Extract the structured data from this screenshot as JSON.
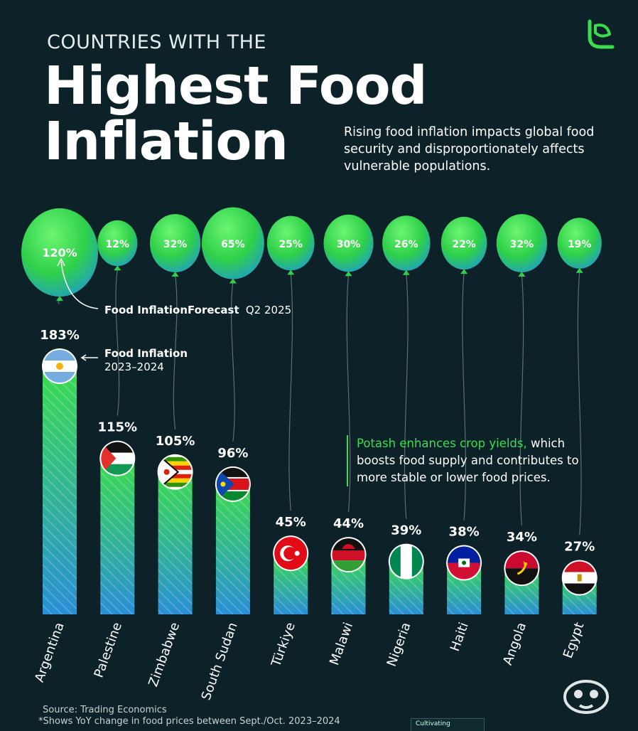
{
  "header": {
    "kicker": "COUNTRIES WITH THE",
    "title_line1": "Highest Food",
    "title_line2": "Inflation",
    "subtitle": "Rising food inflation impacts global food security and disproportionately affects vulnerable populations."
  },
  "annotations": {
    "forecast_label": "Food InflationForecast",
    "forecast_period": "Q2 2025",
    "current_label": "Food Inflation",
    "current_period": "2023–2024"
  },
  "callout": {
    "highlight": "Potash enhances crop yields,",
    "rest": " which boosts food supply and contributes to more stable or lower food prices."
  },
  "footer": {
    "source": "Source: Trading Economics",
    "note": "*Shows YoY change in food prices between Sept./Oct. 2023–2024",
    "stamp": "Cultivating"
  },
  "colors": {
    "background": "#0c2228",
    "bar_top": "#3cdc50",
    "bar_bottom": "#2a8fd6",
    "balloon_light": "#52f05e",
    "balloon_dark": "#1f9ad0",
    "accent": "#3cdc50"
  },
  "chart_data": {
    "type": "bar",
    "categories": [
      "Argentina",
      "Palestine",
      "Zimbabwe",
      "South Sudan",
      "Türkiye",
      "Malawi",
      "Nigeria",
      "Haiti",
      "Angola",
      "Egypt"
    ],
    "series": [
      {
        "name": "Food Inflation 2023–2024",
        "values": [
          183,
          115,
          105,
          96,
          45,
          44,
          39,
          38,
          34,
          27
        ],
        "labels": [
          "183%",
          "115%",
          "105%",
          "96%",
          "45%",
          "44%",
          "39%",
          "38%",
          "34%",
          "27%"
        ]
      },
      {
        "name": "Food InflationForecast Q2 2025",
        "values": [
          120,
          12,
          32,
          65,
          25,
          30,
          26,
          22,
          32,
          19
        ],
        "labels": [
          "120%",
          "12%",
          "32%",
          "65%",
          "25%",
          "30%",
          "26%",
          "22%",
          "32%",
          "19%"
        ]
      }
    ],
    "flags": [
      "flag-argentina-icon",
      "flag-palestine-icon",
      "flag-zimbabwe-icon",
      "flag-south-sudan-icon",
      "flag-turkiye-icon",
      "flag-malawi-icon",
      "flag-nigeria-icon",
      "flag-haiti-icon",
      "flag-angola-icon",
      "flag-egypt-icon"
    ],
    "ylim": [
      0,
      183
    ],
    "grid": false,
    "legend": "annotations"
  }
}
